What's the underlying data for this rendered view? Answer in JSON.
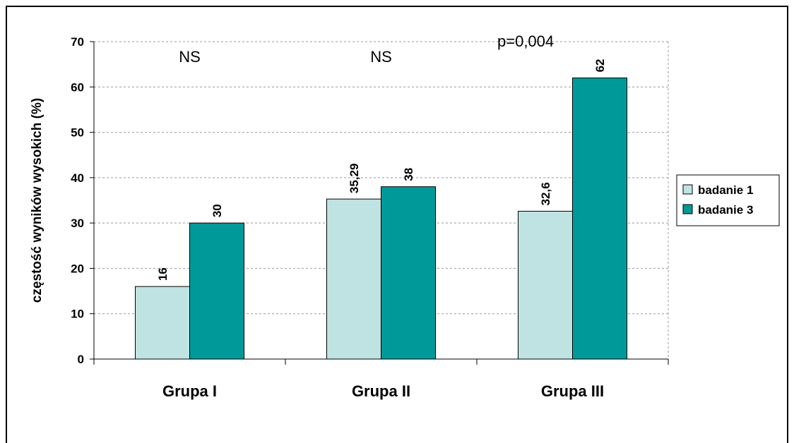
{
  "chart_data": {
    "type": "bar",
    "categories": [
      "Grupa I",
      "Grupa II",
      "Grupa III"
    ],
    "series": [
      {
        "name": "badanie 1",
        "color": "#BFE3E3",
        "values": [
          16,
          35.29,
          32.6
        ],
        "labels": [
          "16",
          "35,29",
          "32,6"
        ]
      },
      {
        "name": "badanie 3",
        "color": "#009999",
        "values": [
          30,
          38,
          62
        ],
        "labels": [
          "30",
          "38",
          "62"
        ]
      }
    ],
    "annotations": [
      "NS",
      "NS",
      "p=0,004"
    ],
    "ylabel": "częstość wyników wysokich (%)",
    "ylim": [
      0,
      70
    ],
    "yticks": [
      0,
      10,
      20,
      30,
      40,
      50,
      60,
      70
    ],
    "ytick_labels": [
      "0",
      "10",
      "20",
      "30",
      "40",
      "50",
      "60",
      "70"
    ],
    "grid": true,
    "legend_position": "right"
  }
}
